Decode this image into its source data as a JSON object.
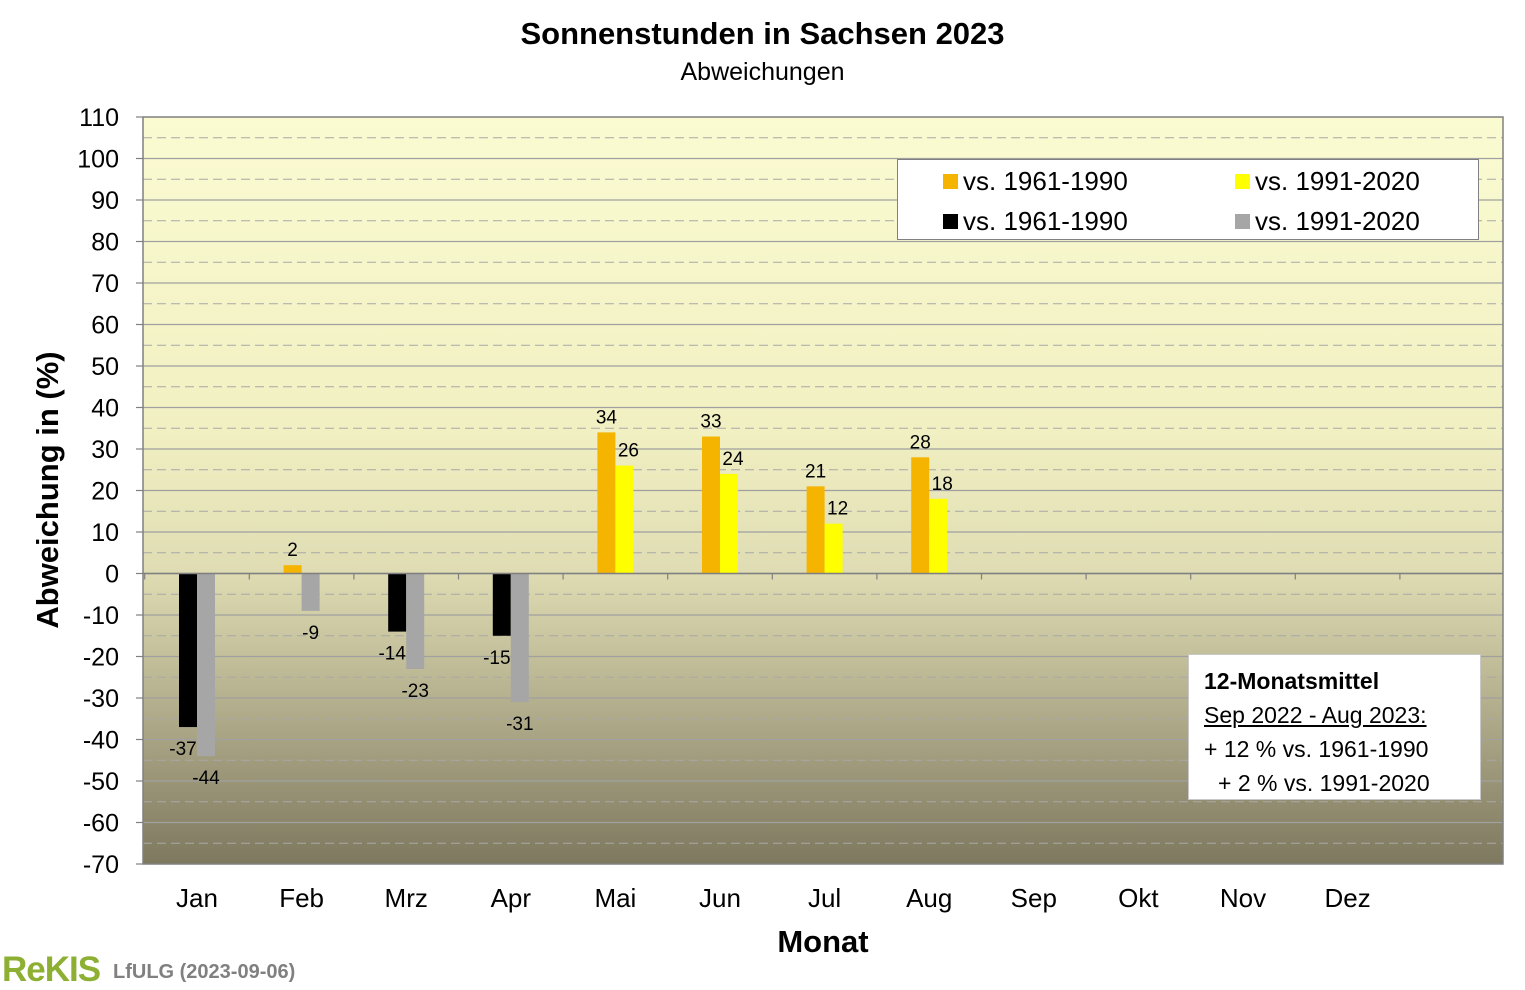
{
  "chart_data": {
    "type": "bar",
    "title": "Sonnenstunden  in Sachsen 2023",
    "subtitle": "Abweichungen",
    "xlabel": "Monat",
    "ylabel": "Abweichung in (%)",
    "ylim": [
      -70,
      110
    ],
    "yticks": [
      110,
      100,
      90,
      80,
      70,
      60,
      50,
      40,
      30,
      20,
      10,
      0,
      -10,
      -20,
      -30,
      -40,
      -50,
      -60,
      -70
    ],
    "categories": [
      "Jan",
      "Feb",
      "Mrz",
      "Apr",
      "Mai",
      "Jun",
      "Jul",
      "Aug",
      "Sep",
      "Okt",
      "Nov",
      "Dez"
    ],
    "series": [
      {
        "name": "vs. 1961-1990",
        "color_pos": "#f5b400",
        "color_neg": "#000000",
        "values": [
          -37,
          2,
          -14,
          -15,
          34,
          33,
          21,
          28,
          null,
          null,
          null,
          null
        ],
        "labels": [
          "-37",
          "2",
          "-14",
          "-15",
          "34",
          "33",
          "21",
          "28",
          "",
          "",
          "",
          ""
        ]
      },
      {
        "name": "vs. 1991-2020",
        "color_pos": "#ffff00",
        "color_neg": "#a6a6a6",
        "values": [
          -44,
          -9,
          -23,
          -31,
          26,
          24,
          12,
          18,
          null,
          null,
          null,
          null
        ],
        "labels": [
          "-44",
          "-9",
          "-23",
          "-31",
          "26",
          "24",
          "12",
          "18",
          "",
          "",
          "",
          ""
        ]
      }
    ],
    "grid": true,
    "legend_placement": "top-right"
  },
  "legend": [
    {
      "label": "vs. 1961-1990",
      "color": "#f5b400"
    },
    {
      "label": "vs. 1991-2020",
      "color": "#ffff00"
    },
    {
      "label": "vs. 1961-1990",
      "color": "#000000"
    },
    {
      "label": "vs. 1991-2020",
      "color": "#a6a6a6"
    }
  ],
  "infobox": {
    "line1": "12-Monatsmittel",
    "line2": "Sep 2022 - Aug 2023:",
    "line3": "+ 12 % vs. 1961-1990",
    "line4": "+ 2 % vs. 1991-2020"
  },
  "footer": {
    "logo": "ReKIS",
    "credit": "LfULG (2023-09-06)"
  },
  "colors": {
    "plot_top": "#fbfbd2",
    "plot_bottom": "#7e785f",
    "border": "#808080"
  }
}
